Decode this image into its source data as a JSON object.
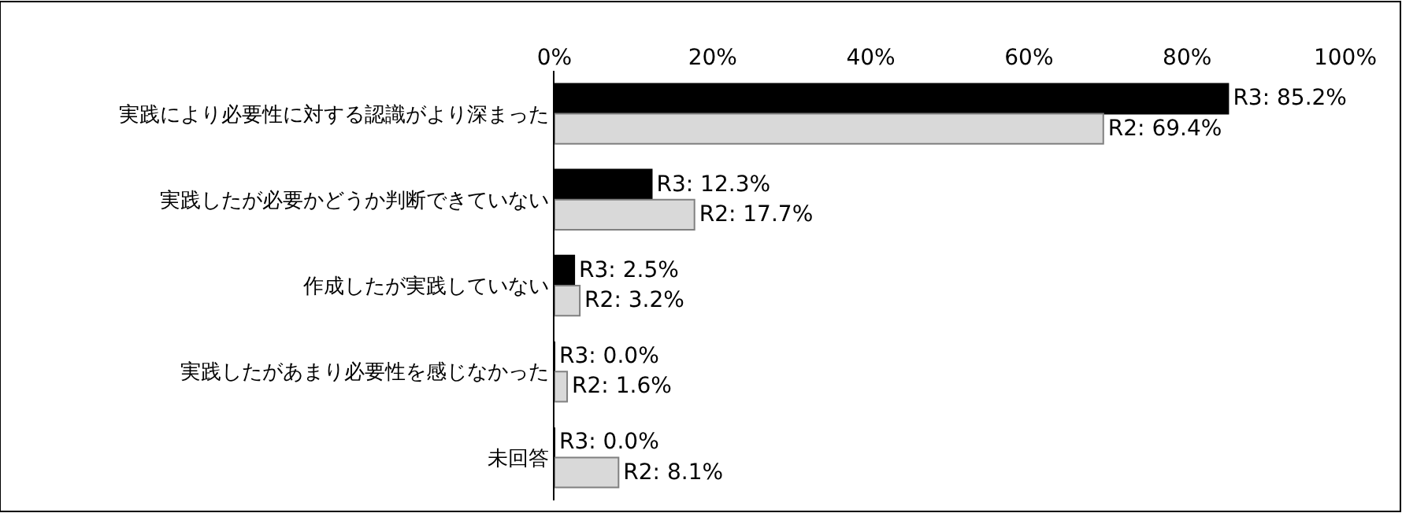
{
  "chart_data": {
    "type": "bar",
    "orientation": "horizontal",
    "categories": [
      "実践により必要性に対する認識がより深まった",
      "実践したが必要かどうか判断できていない",
      "作成したが実践していない",
      "実践したがあまり必要性を感じなかった",
      "未回答"
    ],
    "series": [
      {
        "color": "#000000",
        "values": [
          85.2,
          12.3,
          2.5,
          0.0,
          0.0
        ],
        "value_labels": [
          "R3: 85.2%",
          "R3: 12.3%",
          "R3: 2.5%",
          "R3: 0.0%",
          "R3: 0.0%"
        ]
      },
      {
        "color": "#d9d9d9",
        "values": [
          69.4,
          17.7,
          3.2,
          1.6,
          8.1
        ],
        "value_labels": [
          "R2: 69.4%",
          "R2: 17.7%",
          "R2: 3.2%",
          "R2: 1.6%",
          "R2: 8.1%"
        ]
      }
    ],
    "xlim": [
      0,
      100
    ],
    "xticks": [
      {
        "value": 0,
        "label": "0%"
      },
      {
        "value": 20,
        "label": "20%"
      },
      {
        "value": 40,
        "label": "40%"
      },
      {
        "value": 60,
        "label": "60%"
      },
      {
        "value": 80,
        "label": "80%"
      },
      {
        "value": 100,
        "label": "100%"
      }
    ]
  }
}
